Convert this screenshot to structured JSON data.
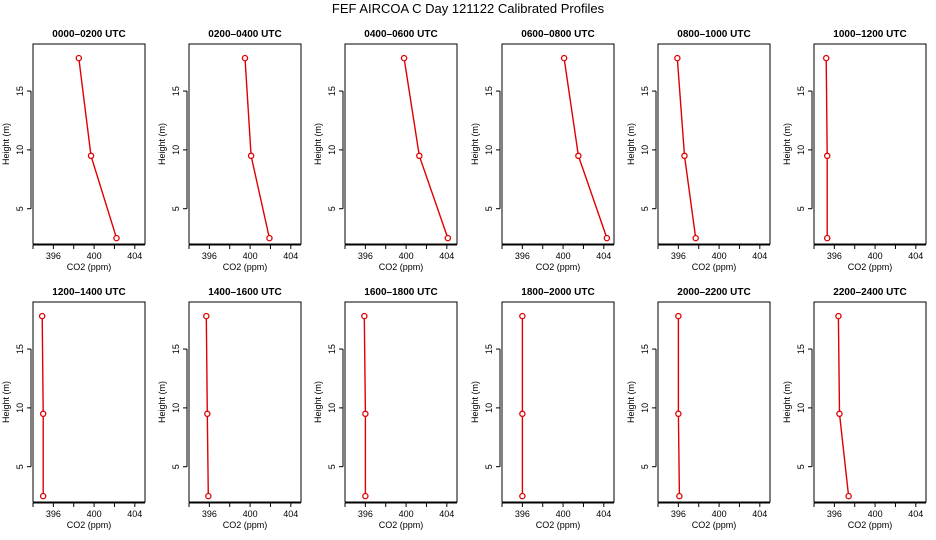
{
  "figure_title": "FEF AIRCOA C  Day 121122  Calibrated Profiles",
  "colors": {
    "series": "#e00000",
    "axis": "#000000",
    "background": "#ffffff"
  },
  "chart_data": [
    {
      "type": "line",
      "title": "0000–0200 UTC",
      "xlabel": "CO2 (ppm)",
      "ylabel": "Height (m)",
      "xlim": [
        394,
        405
      ],
      "ylim": [
        2,
        19
      ],
      "xticks": [
        396,
        400,
        404
      ],
      "yticks": [
        5,
        10,
        15
      ],
      "x": [
        398.5,
        399.7,
        402.2
      ],
      "y": [
        17.8,
        9.5,
        2.5
      ]
    },
    {
      "type": "line",
      "title": "0200–0400 UTC",
      "xlabel": "CO2 (ppm)",
      "ylabel": "Height (m)",
      "xlim": [
        394,
        405
      ],
      "ylim": [
        2,
        19
      ],
      "xticks": [
        396,
        400,
        404
      ],
      "yticks": [
        5,
        10,
        15
      ],
      "x": [
        399.5,
        400.1,
        401.9
      ],
      "y": [
        17.8,
        9.5,
        2.5
      ]
    },
    {
      "type": "line",
      "title": "0400–0600 UTC",
      "xlabel": "CO2 (ppm)",
      "ylabel": "Height (m)",
      "xlim": [
        394,
        405
      ],
      "ylim": [
        2,
        19
      ],
      "xticks": [
        396,
        400,
        404
      ],
      "yticks": [
        5,
        10,
        15
      ],
      "x": [
        399.8,
        401.3,
        404.1
      ],
      "y": [
        17.8,
        9.5,
        2.5
      ]
    },
    {
      "type": "line",
      "title": "0600–0800 UTC",
      "xlabel": "CO2 (ppm)",
      "ylabel": "Height (m)",
      "xlim": [
        394,
        405
      ],
      "ylim": [
        2,
        19
      ],
      "xticks": [
        396,
        400,
        404
      ],
      "yticks": [
        5,
        10,
        15
      ],
      "x": [
        400.1,
        401.5,
        404.3
      ],
      "y": [
        17.8,
        9.5,
        2.5
      ]
    },
    {
      "type": "line",
      "title": "0800–1000 UTC",
      "xlabel": "CO2 (ppm)",
      "ylabel": "Height (m)",
      "xlim": [
        394,
        405
      ],
      "ylim": [
        2,
        19
      ],
      "xticks": [
        396,
        400,
        404
      ],
      "yticks": [
        5,
        10,
        15
      ],
      "x": [
        395.9,
        396.6,
        397.7
      ],
      "y": [
        17.8,
        9.5,
        2.5
      ]
    },
    {
      "type": "line",
      "title": "1000–1200 UTC",
      "xlabel": "CO2 (ppm)",
      "ylabel": "Height (m)",
      "xlim": [
        394,
        405
      ],
      "ylim": [
        2,
        19
      ],
      "xticks": [
        396,
        400,
        404
      ],
      "yticks": [
        5,
        10,
        15
      ],
      "x": [
        395.2,
        395.3,
        395.3
      ],
      "y": [
        17.8,
        9.5,
        2.5
      ]
    },
    {
      "type": "line",
      "title": "1200–1400 UTC",
      "xlabel": "CO2 (ppm)",
      "ylabel": "Height (m)",
      "xlim": [
        394,
        405
      ],
      "ylim": [
        2,
        19
      ],
      "xticks": [
        396,
        400,
        404
      ],
      "yticks": [
        5,
        10,
        15
      ],
      "x": [
        394.9,
        395.0,
        395.0
      ],
      "y": [
        17.8,
        9.5,
        2.5
      ]
    },
    {
      "type": "line",
      "title": "1400–1600 UTC",
      "xlabel": "CO2 (ppm)",
      "ylabel": "Height (m)",
      "xlim": [
        394,
        405
      ],
      "ylim": [
        2,
        19
      ],
      "xticks": [
        396,
        400,
        404
      ],
      "yticks": [
        5,
        10,
        15
      ],
      "x": [
        395.7,
        395.8,
        395.9
      ],
      "y": [
        17.8,
        9.5,
        2.5
      ]
    },
    {
      "type": "line",
      "title": "1600–1800 UTC",
      "xlabel": "CO2 (ppm)",
      "ylabel": "Height (m)",
      "xlim": [
        394,
        405
      ],
      "ylim": [
        2,
        19
      ],
      "xticks": [
        396,
        400,
        404
      ],
      "yticks": [
        5,
        10,
        15
      ],
      "x": [
        395.9,
        396.0,
        396.0
      ],
      "y": [
        17.8,
        9.5,
        2.5
      ]
    },
    {
      "type": "line",
      "title": "1800–2000 UTC",
      "xlabel": "CO2 (ppm)",
      "ylabel": "Height (m)",
      "xlim": [
        394,
        405
      ],
      "ylim": [
        2,
        19
      ],
      "xticks": [
        396,
        400,
        404
      ],
      "yticks": [
        5,
        10,
        15
      ],
      "x": [
        396.0,
        396.0,
        396.0
      ],
      "y": [
        17.8,
        9.5,
        2.5
      ]
    },
    {
      "type": "line",
      "title": "2000–2200 UTC",
      "xlabel": "CO2 (ppm)",
      "ylabel": "Height (m)",
      "xlim": [
        394,
        405
      ],
      "ylim": [
        2,
        19
      ],
      "xticks": [
        396,
        400,
        404
      ],
      "yticks": [
        5,
        10,
        15
      ],
      "x": [
        396.0,
        396.0,
        396.1
      ],
      "y": [
        17.8,
        9.5,
        2.5
      ]
    },
    {
      "type": "line",
      "title": "2200–2400 UTC",
      "xlabel": "CO2 (ppm)",
      "ylabel": "Height (m)",
      "xlim": [
        394,
        405
      ],
      "ylim": [
        2,
        19
      ],
      "xticks": [
        396,
        400,
        404
      ],
      "yticks": [
        5,
        10,
        15
      ],
      "x": [
        396.4,
        396.5,
        397.4
      ],
      "y": [
        17.8,
        9.5,
        2.5
      ]
    }
  ]
}
